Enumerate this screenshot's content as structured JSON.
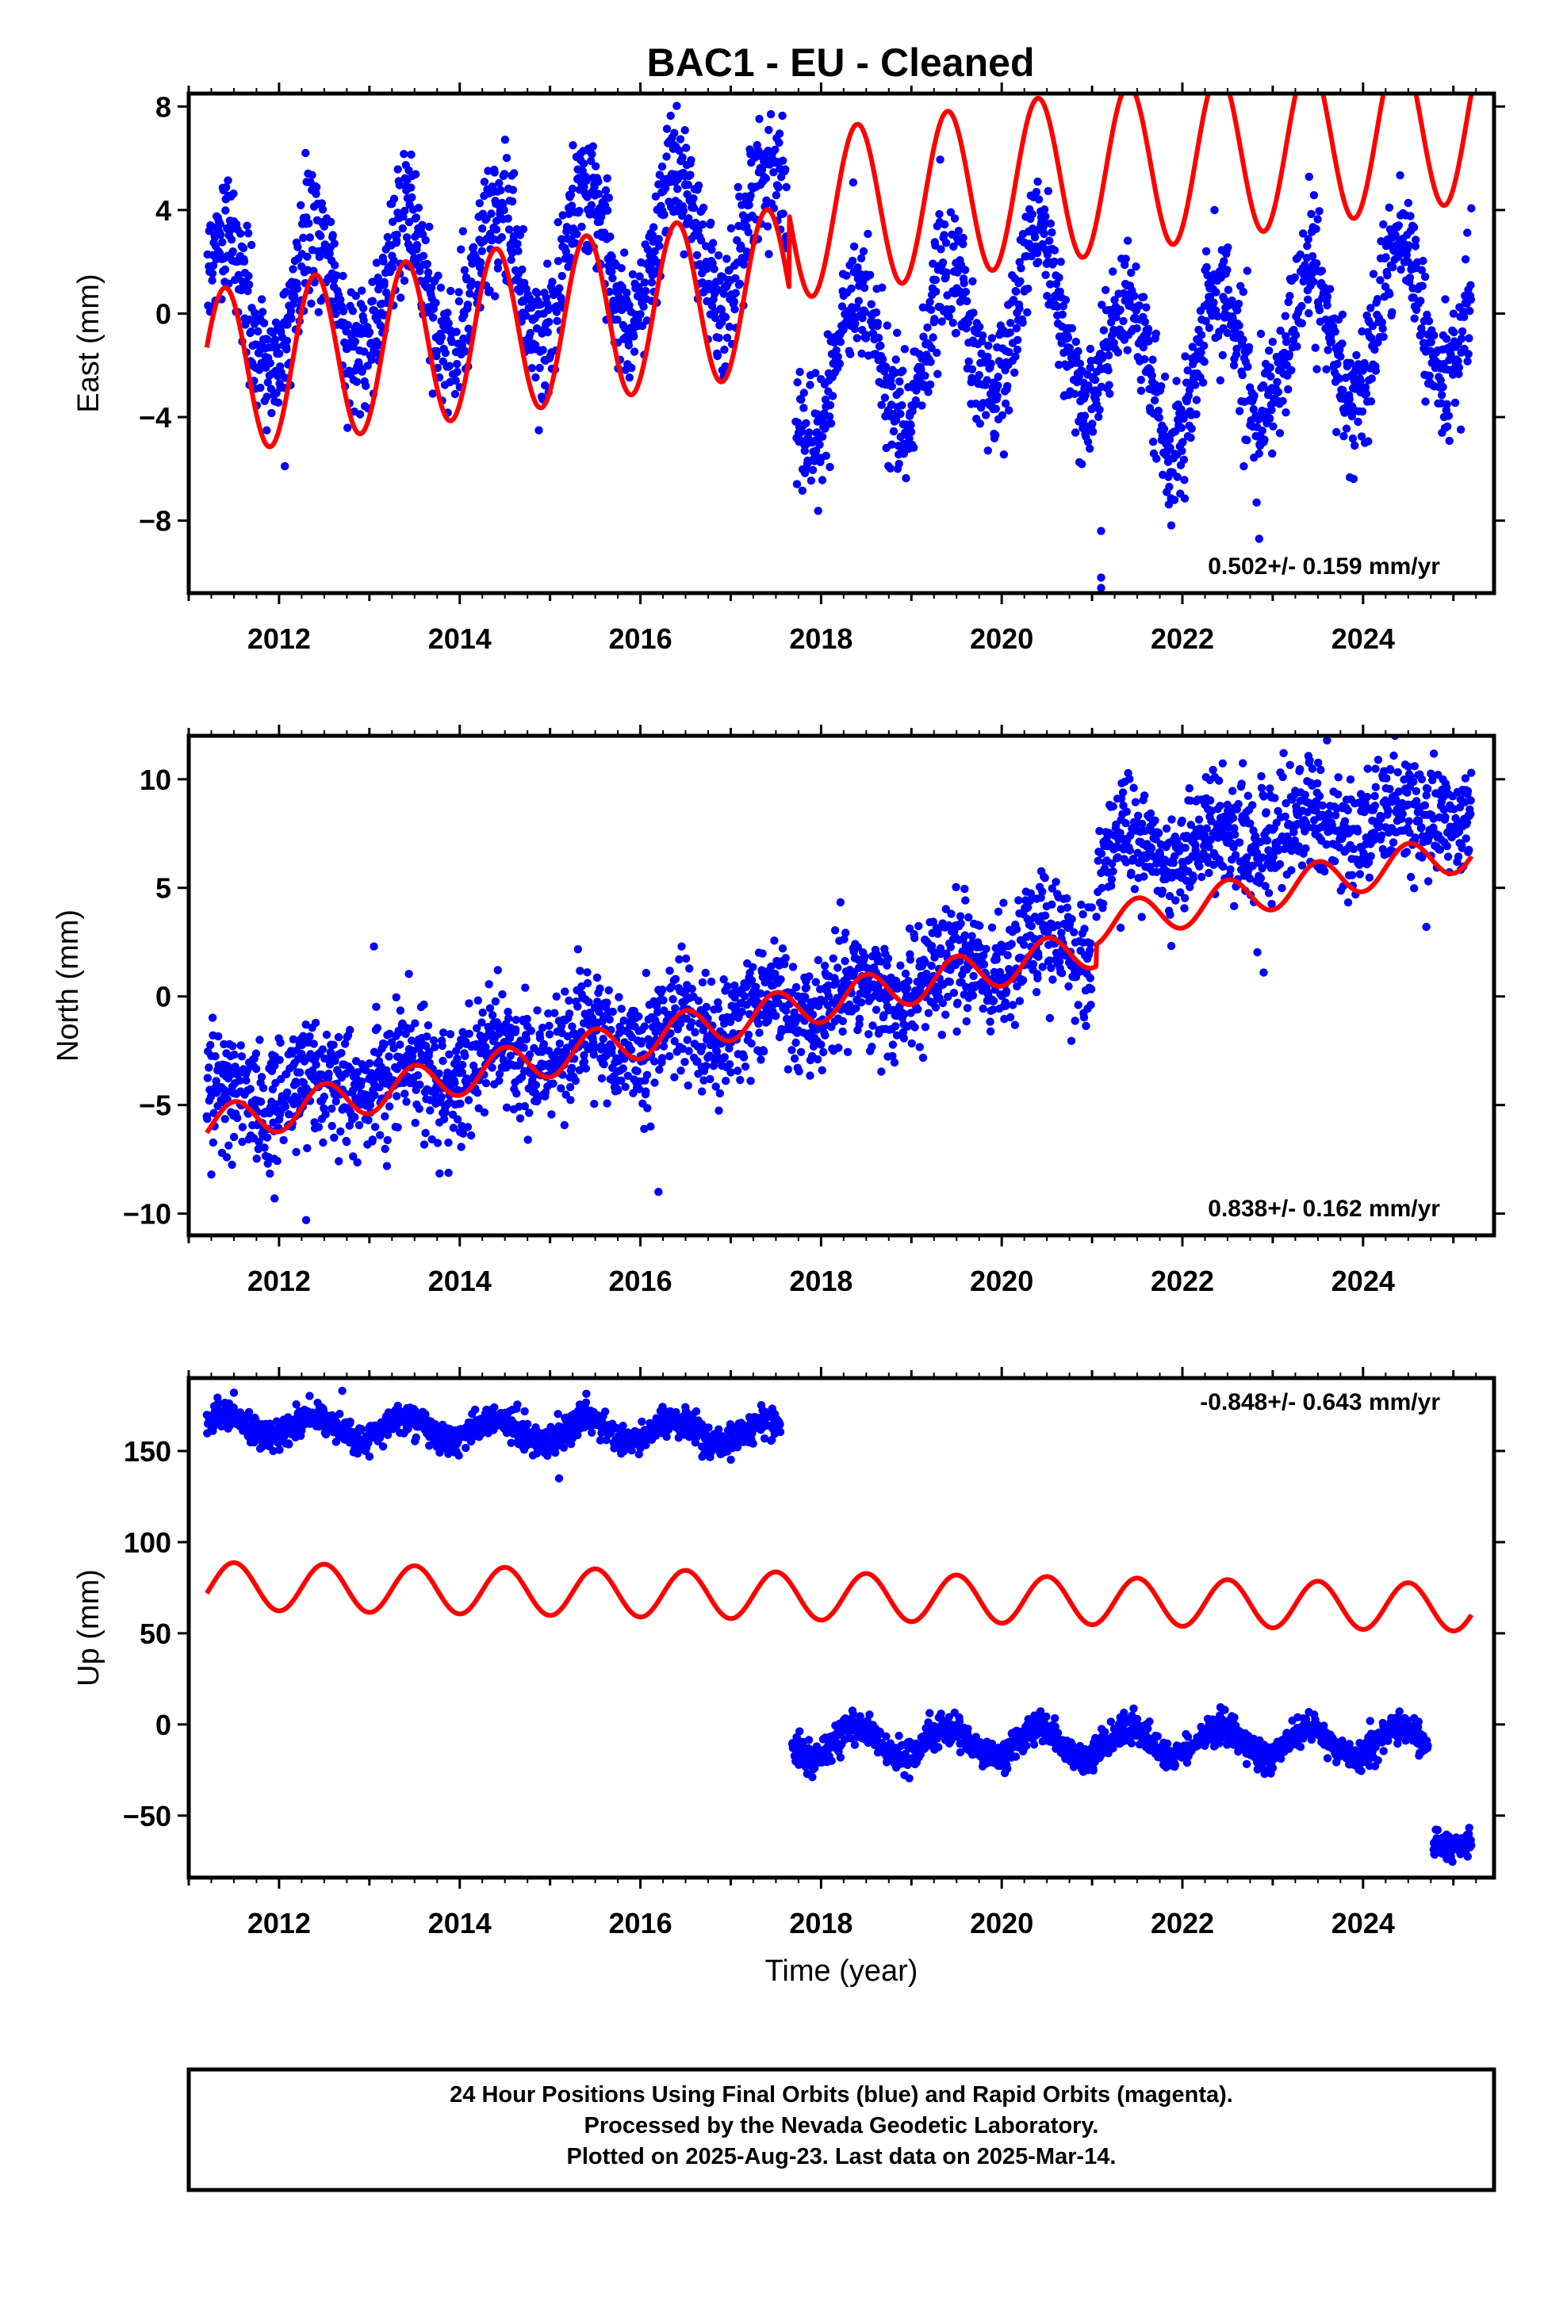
{
  "title": "BAC1  - EU - Cleaned",
  "colors": {
    "data": "#0000ff",
    "model": "#ff0000",
    "frame": "#000000"
  },
  "footer": {
    "line1": "24 Hour Positions Using Final Orbits (blue) and Rapid Orbits (magenta).",
    "line2": "Processed by the Nevada Geodetic Laboratory.",
    "line3": "Plotted on 2025-Aug-23. Last data on 2025-Mar-14."
  },
  "chart_data": [
    {
      "type": "scatter",
      "ylabel": "East (mm)",
      "xlabel": "",
      "xlim": [
        2011.0,
        2025.45
      ],
      "ylim": [
        -10.8,
        8.5
      ],
      "yticks": [
        -8,
        -4,
        0,
        4,
        8
      ],
      "ytick_labels": [
        "−8",
        "−4",
        "0",
        "4",
        "8"
      ],
      "xticks": [
        2012,
        2014,
        2016,
        2018,
        2020,
        2022,
        2024
      ],
      "xtick_labels": [
        "2012",
        "2014",
        "2016",
        "2018",
        "2020",
        "2022",
        "2024"
      ],
      "rate_text": "0.502+/- 0.159 mm/yr",
      "rate_position": "bottom-right",
      "series": [
        {
          "style": "points",
          "color": "#0000ff",
          "data_segments": [
            {
              "x_range": [
                2011.2,
                2017.62
              ],
              "centerline": [
                [
                  2011.2,
                  0.3
                ],
                [
                  2014.0,
                  1.2
                ],
                [
                  2017.6,
                  3.5
                ]
              ],
              "seasonal_amplitude_mm": 2.8,
              "scatter_sd_mm": 1.2
            },
            {
              "x_range": [
                2017.72,
                2025.2
              ],
              "centerline": [
                [
                  2017.72,
                  -3.0
                ],
                [
                  2020.5,
                  0.5
                ],
                [
                  2021.5,
                  -2.5
                ],
                [
                  2025.2,
                  0.5
                ]
              ],
              "seasonal_amplitude_mm": 2.8,
              "scatter_sd_mm": 1.2
            }
          ],
          "outliers": [
            [
              2021.1,
              -8.4
            ],
            [
              2021.1,
              -10.2
            ],
            [
              2021.1,
              -10.6
            ],
            [
              2022.85,
              -8.7
            ]
          ]
        },
        {
          "style": "line",
          "color": "#ff0000",
          "offset_jumps": [
            [
              2017.65,
              2.8
            ]
          ],
          "model": {
            "t0": 2011.2,
            "offset_mm": -2.3,
            "rate_mm_per_yr": 0.502,
            "annual_amplitude_mm": 3.2,
            "annual_peak": 0.4
          }
        }
      ]
    },
    {
      "type": "scatter",
      "ylabel": "North (mm)",
      "xlabel": "",
      "xlim": [
        2011.0,
        2025.45
      ],
      "ylim": [
        -11.0,
        12.0
      ],
      "yticks": [
        -10,
        -5,
        0,
        5,
        10
      ],
      "ytick_labels": [
        "−10",
        "−5",
        "0",
        "5",
        "10"
      ],
      "xticks": [
        2012,
        2014,
        2016,
        2018,
        2020,
        2022,
        2024
      ],
      "xtick_labels": [
        "2012",
        "2014",
        "2016",
        "2018",
        "2020",
        "2022",
        "2024"
      ],
      "rate_text": "0.838+/- 0.162 mm/yr",
      "rate_position": "bottom-right",
      "series": [
        {
          "style": "points",
          "color": "#0000ff",
          "data_segments": [
            {
              "x_range": [
                2011.2,
                2021.0
              ],
              "centerline": [
                [
                  2011.2,
                  -5.0
                ],
                [
                  2016.5,
                  -1.5
                ],
                [
                  2021.0,
                  2.5
                ]
              ],
              "seasonal_amplitude_mm": 0.8,
              "scatter_sd_mm": 1.3
            },
            {
              "x_range": [
                2021.05,
                2025.2
              ],
              "centerline": [
                [
                  2021.05,
                  6.5
                ],
                [
                  2025.2,
                  8.5
                ]
              ],
              "seasonal_amplitude_mm": 0.8,
              "scatter_sd_mm": 1.3
            }
          ],
          "outliers": [
            [
              2012.3,
              -10.3
            ],
            [
              2011.95,
              -9.3
            ],
            [
              2013.05,
              2.3
            ],
            [
              2016.2,
              -9.0
            ],
            [
              2024.7,
              3.2
            ],
            [
              2022.9,
              1.1
            ],
            [
              2011.25,
              -8.2
            ]
          ]
        },
        {
          "style": "line",
          "color": "#ff0000",
          "offset_jumps": [
            [
              2021.05,
              1.0
            ]
          ],
          "model": {
            "t0": 2011.2,
            "offset_mm": -6.0,
            "rate_mm_per_yr": 0.838,
            "annual_amplitude_mm": 0.9,
            "annual_peak": 0.5
          }
        }
      ]
    },
    {
      "type": "scatter",
      "ylabel": "Up (mm)",
      "xlabel": "Time (year)",
      "xlim": [
        2011.0,
        2025.45
      ],
      "ylim": [
        -84,
        190
      ],
      "yticks": [
        -50,
        0,
        50,
        100,
        150
      ],
      "ytick_labels": [
        "−50",
        "0",
        "50",
        "100",
        "150"
      ],
      "xticks": [
        2012,
        2014,
        2016,
        2018,
        2020,
        2022,
        2024
      ],
      "xtick_labels": [
        "2012",
        "2014",
        "2016",
        "2018",
        "2020",
        "2022",
        "2024"
      ],
      "rate_text": "-0.848+/- 0.643 mm/yr",
      "rate_position": "top-right",
      "series": [
        {
          "style": "points",
          "color": "#0000ff",
          "data_segments": [
            {
              "x_range": [
                2011.2,
                2017.55
              ],
              "centerline": [
                [
                  2011.2,
                  164
                ],
                [
                  2017.55,
                  160
                ]
              ],
              "seasonal_amplitude_mm": 6,
              "scatter_sd_mm": 4
            },
            {
              "x_range": [
                2017.68,
                2024.72
              ],
              "centerline": [
                [
                  2017.68,
                  -10
                ],
                [
                  2024.72,
                  -10
                ]
              ],
              "seasonal_amplitude_mm": 8,
              "scatter_sd_mm": 4
            },
            {
              "x_range": [
                2024.78,
                2025.2
              ],
              "centerline": [
                [
                  2024.78,
                  -64
                ],
                [
                  2025.2,
                  -66
                ]
              ],
              "seasonal_amplitude_mm": 2,
              "scatter_sd_mm": 4
            }
          ],
          "outliers": [
            [
              2015.1,
              135
            ],
            [
              2011.5,
              182
            ],
            [
              2012.7,
              183
            ]
          ]
        },
        {
          "style": "line",
          "color": "#ff0000",
          "offset_jumps": [],
          "model": {
            "t0": 2011.2,
            "offset_mm": 76,
            "rate_mm_per_yr": -0.848,
            "annual_amplitude_mm": 13,
            "annual_peak": 0.5
          }
        }
      ]
    }
  ]
}
